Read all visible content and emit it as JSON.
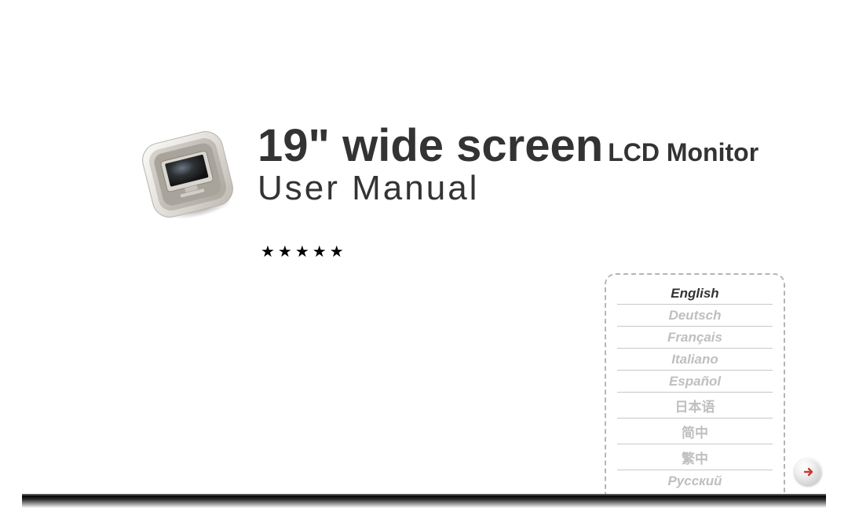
{
  "title": {
    "screen_size": "19\" wide screen",
    "subtitle": "LCD Monitor",
    "user_manual": "User Manual",
    "color": "#333333",
    "screen_size_fontsize": 58,
    "subtitle_fontsize": 32,
    "user_manual_fontsize": 44
  },
  "stars": {
    "count": 5,
    "glyph": "★",
    "color": "#000000"
  },
  "languages": {
    "active_index": 0,
    "items": [
      {
        "label": "English",
        "active": true,
        "cjk": false
      },
      {
        "label": "Deutsch",
        "active": false,
        "cjk": false
      },
      {
        "label": "Français",
        "active": false,
        "cjk": false
      },
      {
        "label": "Italiano",
        "active": false,
        "cjk": false
      },
      {
        "label": "Español",
        "active": false,
        "cjk": false
      },
      {
        "label": "日本语",
        "active": false,
        "cjk": true
      },
      {
        "label": "简中",
        "active": false,
        "cjk": true
      },
      {
        "label": "繁中",
        "active": false,
        "cjk": true
      },
      {
        "label": "Русский",
        "active": false,
        "cjk": false
      }
    ],
    "box": {
      "border_color": "#b5b5b5",
      "divider_color": "#c8c8c8",
      "active_text_color": "#333333",
      "inactive_text_color": "#bfbfbf",
      "italic": true,
      "fontsize": 17
    }
  },
  "arrow_button": {
    "direction": "right",
    "arrow_color": "#c93a2f"
  },
  "footer": {
    "border_color": "#555555",
    "gradient_from": "#000000",
    "gradient_to": "#ffffff"
  },
  "monitor_icon": {
    "bezel_outer": "#e8e6e1",
    "bezel_inner": "#c9c6bf",
    "screen_outer": "#b0aca4",
    "screen_inner": "#2a2a2a",
    "screen_glow": "#5c6a7a",
    "stand": "#d8d5cf",
    "shadow": "rgba(0,0,0,0.28)"
  },
  "colors": {
    "background": "#ffffff"
  }
}
